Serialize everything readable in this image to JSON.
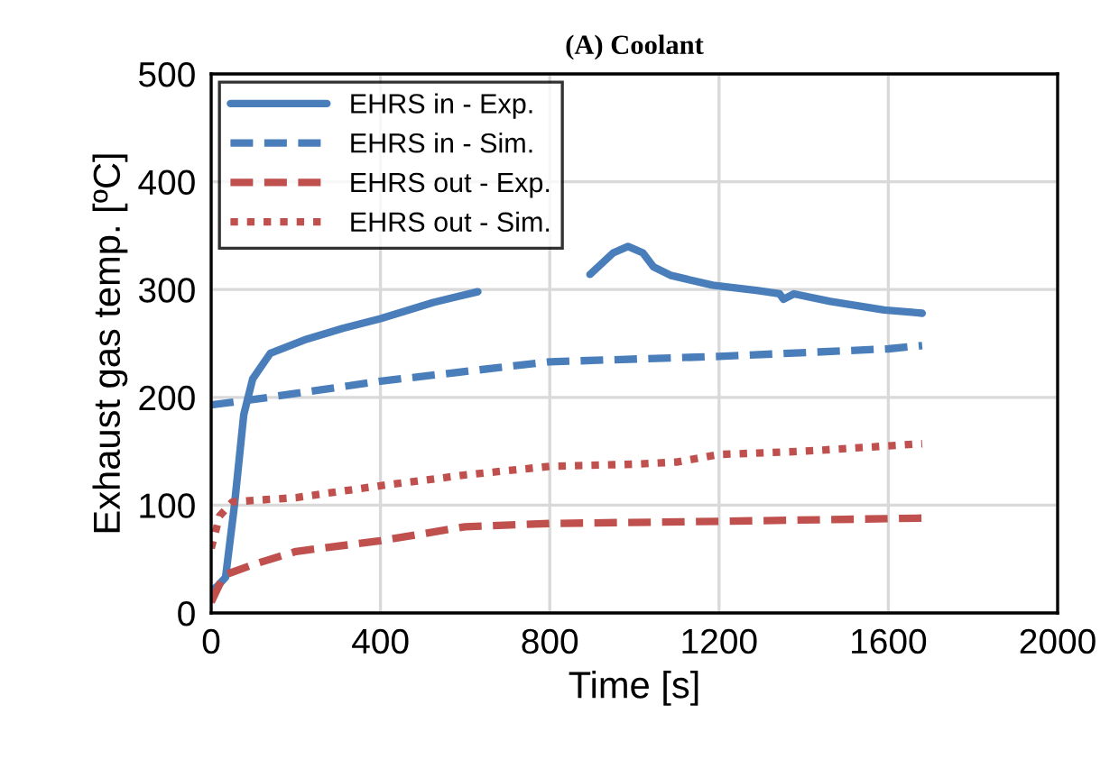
{
  "chart_data": {
    "type": "line",
    "title": "(A) Coolant",
    "xlabel": "Time [s]",
    "ylabel": "Exhaust gas temp. [ºC]",
    "xlim": [
      0,
      2000
    ],
    "xticks": [
      0,
      400,
      800,
      1200,
      1600,
      2000
    ],
    "ylim": [
      0,
      500
    ],
    "yticks": [
      0,
      100,
      200,
      300,
      400,
      500
    ],
    "grid": true,
    "legend": "top left",
    "marker": "none",
    "series": [
      {
        "name": "EHRS in - Exp.",
        "color": "#4a7ebb",
        "line_style": "solid",
        "x": [
          0,
          15,
          34,
          55,
          77,
          98,
          140,
          226,
          311,
          400,
          525,
          630,
          650,
          895,
          950,
          985,
          1020,
          1045,
          1087,
          1185,
          1292,
          1343,
          1352,
          1377,
          1463,
          1590,
          1655,
          1680
        ],
        "values": [
          20,
          25,
          33,
          100,
          184,
          217,
          241,
          254,
          264,
          273,
          288,
          298,
          null,
          314,
          334,
          340,
          334,
          321,
          313,
          304,
          299,
          296,
          291,
          296,
          289,
          281,
          279,
          278
        ]
      },
      {
        "name": "EHRS in - Sim.",
        "color": "#4a7ebb",
        "line_style": "dashed",
        "x": [
          0,
          100,
          400,
          800,
          1200,
          1600,
          1680
        ],
        "values": [
          193,
          198,
          215,
          233,
          238,
          245,
          248
        ]
      },
      {
        "name": "EHRS out - Exp.",
        "color": "#c0504d",
        "line_style": "dashed",
        "x": [
          0,
          30,
          100,
          200,
          400,
          600,
          800,
          1200,
          1680
        ],
        "values": [
          10,
          35,
          45,
          57,
          67,
          80,
          83,
          85,
          88
        ]
      },
      {
        "name": "EHRS out - Sim.",
        "color": "#c0504d",
        "line_style": "dotted",
        "x": [
          0,
          20,
          50,
          200,
          400,
          600,
          800,
          1000,
          1100,
          1200,
          1400,
          1600,
          1680
        ],
        "values": [
          60,
          90,
          103,
          107,
          118,
          128,
          136,
          138,
          140,
          147,
          150,
          155,
          157
        ]
      }
    ]
  }
}
